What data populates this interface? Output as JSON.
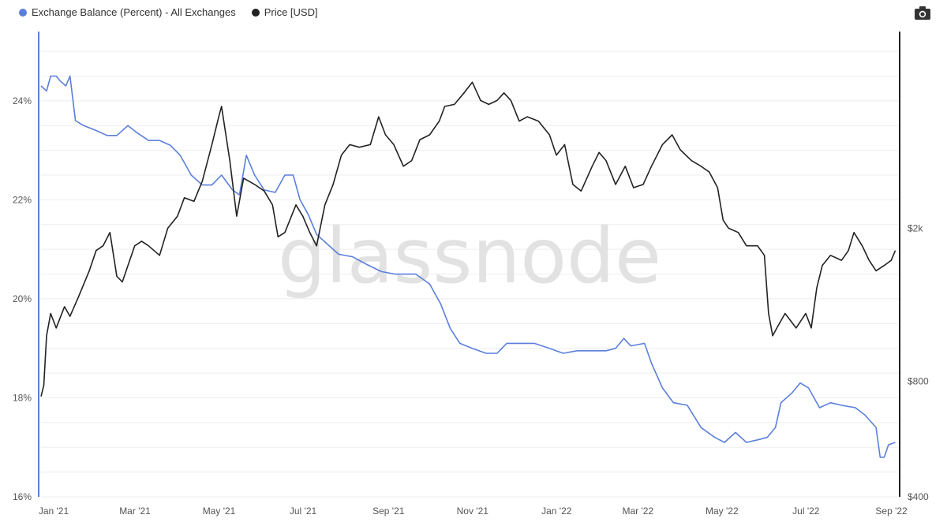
{
  "toolbar": {
    "camera_icon": "camera-icon"
  },
  "chart_data": {
    "type": "line",
    "title": "",
    "watermark": "glassnode",
    "legend_position": "top-left",
    "grid": true,
    "x_range": [
      "2021-01-01",
      "2022-09-15"
    ],
    "x_ticks": [
      "Jan '21",
      "Mar '21",
      "May '21",
      "Jul '21",
      "Sep '21",
      "Nov '21",
      "Jan '22",
      "Mar '22",
      "May '22",
      "Jul '22",
      "Sep '22"
    ],
    "y_left": {
      "label": "",
      "ticks": [
        "16%",
        "18%",
        "20%",
        "22%",
        "24%"
      ],
      "range": [
        16,
        25.4
      ],
      "color": "#5b7fdb"
    },
    "y_right": {
      "label": "",
      "scale": "log",
      "ticks": [
        {
          "value": 400,
          "label": "$400"
        },
        {
          "value": 800,
          "label": "$800"
        },
        {
          "value": 2000,
          "label": "$2k"
        }
      ],
      "range": [
        400,
        6500
      ],
      "color": "#222222"
    },
    "series": [
      {
        "name": "Exchange Balance (Percent) - All Exchanges",
        "axis": "left",
        "color": "#5b7fdb",
        "points": [
          [
            "2021-01-01",
            24.3
          ],
          [
            "2021-01-05",
            24.2
          ],
          [
            "2021-01-08",
            24.5
          ],
          [
            "2021-01-12",
            24.5
          ],
          [
            "2021-01-15",
            24.4
          ],
          [
            "2021-01-19",
            24.3
          ],
          [
            "2021-01-22",
            24.5
          ],
          [
            "2021-01-26",
            23.6
          ],
          [
            "2021-02-01",
            23.5
          ],
          [
            "2021-02-10",
            23.4
          ],
          [
            "2021-02-18",
            23.3
          ],
          [
            "2021-02-25",
            23.3
          ],
          [
            "2021-03-05",
            23.5
          ],
          [
            "2021-03-12",
            23.35
          ],
          [
            "2021-03-20",
            23.2
          ],
          [
            "2021-03-28",
            23.2
          ],
          [
            "2021-04-05",
            23.1
          ],
          [
            "2021-04-12",
            22.9
          ],
          [
            "2021-04-20",
            22.5
          ],
          [
            "2021-04-28",
            22.3
          ],
          [
            "2021-05-05",
            22.3
          ],
          [
            "2021-05-12",
            22.5
          ],
          [
            "2021-05-20",
            22.2
          ],
          [
            "2021-05-25",
            22.1
          ],
          [
            "2021-05-30",
            22.9
          ],
          [
            "2021-06-05",
            22.5
          ],
          [
            "2021-06-12",
            22.2
          ],
          [
            "2021-06-20",
            22.15
          ],
          [
            "2021-06-27",
            22.5
          ],
          [
            "2021-07-03",
            22.5
          ],
          [
            "2021-07-08",
            22.0
          ],
          [
            "2021-07-14",
            21.7
          ],
          [
            "2021-07-20",
            21.3
          ],
          [
            "2021-07-28",
            21.1
          ],
          [
            "2021-08-05",
            20.9
          ],
          [
            "2021-08-15",
            20.85
          ],
          [
            "2021-08-25",
            20.7
          ],
          [
            "2021-09-05",
            20.55
          ],
          [
            "2021-09-15",
            20.5
          ],
          [
            "2021-09-22",
            20.5
          ],
          [
            "2021-09-30",
            20.5
          ],
          [
            "2021-10-10",
            20.3
          ],
          [
            "2021-10-18",
            19.9
          ],
          [
            "2021-10-25",
            19.4
          ],
          [
            "2021-11-01",
            19.1
          ],
          [
            "2021-11-10",
            19.0
          ],
          [
            "2021-11-20",
            18.9
          ],
          [
            "2021-11-28",
            18.9
          ],
          [
            "2021-12-05",
            19.1
          ],
          [
            "2021-12-15",
            19.1
          ],
          [
            "2021-12-25",
            19.1
          ],
          [
            "2022-01-05",
            19.0
          ],
          [
            "2022-01-15",
            18.9
          ],
          [
            "2022-01-25",
            18.95
          ],
          [
            "2022-02-05",
            18.95
          ],
          [
            "2022-02-15",
            18.95
          ],
          [
            "2022-02-22",
            19.0
          ],
          [
            "2022-02-28",
            19.2
          ],
          [
            "2022-03-05",
            19.05
          ],
          [
            "2022-03-15",
            19.1
          ],
          [
            "2022-03-20",
            18.7
          ],
          [
            "2022-03-28",
            18.2
          ],
          [
            "2022-04-05",
            17.9
          ],
          [
            "2022-04-15",
            17.85
          ],
          [
            "2022-04-25",
            17.4
          ],
          [
            "2022-05-05",
            17.2
          ],
          [
            "2022-05-12",
            17.1
          ],
          [
            "2022-05-20",
            17.3
          ],
          [
            "2022-05-28",
            17.1
          ],
          [
            "2022-06-05",
            17.15
          ],
          [
            "2022-06-12",
            17.2
          ],
          [
            "2022-06-18",
            17.4
          ],
          [
            "2022-06-22",
            17.9
          ],
          [
            "2022-06-30",
            18.1
          ],
          [
            "2022-07-06",
            18.3
          ],
          [
            "2022-07-12",
            18.2
          ],
          [
            "2022-07-20",
            17.8
          ],
          [
            "2022-07-28",
            17.9
          ],
          [
            "2022-08-05",
            17.85
          ],
          [
            "2022-08-15",
            17.8
          ],
          [
            "2022-08-22",
            17.65
          ],
          [
            "2022-08-30",
            17.4
          ],
          [
            "2022-09-02",
            16.8
          ],
          [
            "2022-09-05",
            16.8
          ],
          [
            "2022-09-08",
            17.05
          ],
          [
            "2022-09-13",
            17.1
          ]
        ]
      },
      {
        "name": "Price [USD]",
        "axis": "right",
        "color": "#222222",
        "points": [
          [
            "2021-01-01",
            730
          ],
          [
            "2021-01-03",
            780
          ],
          [
            "2021-01-05",
            1050
          ],
          [
            "2021-01-08",
            1200
          ],
          [
            "2021-01-12",
            1100
          ],
          [
            "2021-01-18",
            1250
          ],
          [
            "2021-01-22",
            1180
          ],
          [
            "2021-01-28",
            1320
          ],
          [
            "2021-02-05",
            1550
          ],
          [
            "2021-02-10",
            1750
          ],
          [
            "2021-02-15",
            1800
          ],
          [
            "2021-02-20",
            1950
          ],
          [
            "2021-02-25",
            1500
          ],
          [
            "2021-03-01",
            1450
          ],
          [
            "2021-03-10",
            1800
          ],
          [
            "2021-03-15",
            1850
          ],
          [
            "2021-03-20",
            1800
          ],
          [
            "2021-03-28",
            1700
          ],
          [
            "2021-04-03",
            2000
          ],
          [
            "2021-04-10",
            2150
          ],
          [
            "2021-04-15",
            2400
          ],
          [
            "2021-04-22",
            2350
          ],
          [
            "2021-04-28",
            2650
          ],
          [
            "2021-05-05",
            3300
          ],
          [
            "2021-05-10",
            3900
          ],
          [
            "2021-05-12",
            4150
          ],
          [
            "2021-05-18",
            3000
          ],
          [
            "2021-05-23",
            2150
          ],
          [
            "2021-05-28",
            2700
          ],
          [
            "2021-06-05",
            2600
          ],
          [
            "2021-06-12",
            2500
          ],
          [
            "2021-06-18",
            2300
          ],
          [
            "2021-06-22",
            1900
          ],
          [
            "2021-06-27",
            1950
          ],
          [
            "2021-07-05",
            2300
          ],
          [
            "2021-07-10",
            2150
          ],
          [
            "2021-07-15",
            1950
          ],
          [
            "2021-07-20",
            1800
          ],
          [
            "2021-07-26",
            2300
          ],
          [
            "2021-08-01",
            2600
          ],
          [
            "2021-08-07",
            3100
          ],
          [
            "2021-08-13",
            3300
          ],
          [
            "2021-08-20",
            3250
          ],
          [
            "2021-08-28",
            3300
          ],
          [
            "2021-09-03",
            3900
          ],
          [
            "2021-09-08",
            3500
          ],
          [
            "2021-09-14",
            3300
          ],
          [
            "2021-09-21",
            2900
          ],
          [
            "2021-09-27",
            3000
          ],
          [
            "2021-10-03",
            3400
          ],
          [
            "2021-10-10",
            3500
          ],
          [
            "2021-10-17",
            3800
          ],
          [
            "2021-10-21",
            4150
          ],
          [
            "2021-10-28",
            4200
          ],
          [
            "2021-11-04",
            4500
          ],
          [
            "2021-11-10",
            4800
          ],
          [
            "2021-11-16",
            4300
          ],
          [
            "2021-11-22",
            4200
          ],
          [
            "2021-11-28",
            4300
          ],
          [
            "2021-12-03",
            4500
          ],
          [
            "2021-12-08",
            4300
          ],
          [
            "2021-12-14",
            3800
          ],
          [
            "2021-12-20",
            3900
          ],
          [
            "2021-12-28",
            3800
          ],
          [
            "2022-01-05",
            3500
          ],
          [
            "2022-01-10",
            3100
          ],
          [
            "2022-01-16",
            3300
          ],
          [
            "2022-01-22",
            2600
          ],
          [
            "2022-01-28",
            2500
          ],
          [
            "2022-02-05",
            2900
          ],
          [
            "2022-02-10",
            3150
          ],
          [
            "2022-02-15",
            3000
          ],
          [
            "2022-02-22",
            2600
          ],
          [
            "2022-03-01",
            2900
          ],
          [
            "2022-03-07",
            2550
          ],
          [
            "2022-03-14",
            2600
          ],
          [
            "2022-03-20",
            2900
          ],
          [
            "2022-03-28",
            3300
          ],
          [
            "2022-04-04",
            3500
          ],
          [
            "2022-04-10",
            3200
          ],
          [
            "2022-04-18",
            3000
          ],
          [
            "2022-04-25",
            2900
          ],
          [
            "2022-05-01",
            2800
          ],
          [
            "2022-05-07",
            2550
          ],
          [
            "2022-05-11",
            2100
          ],
          [
            "2022-05-15",
            2000
          ],
          [
            "2022-05-22",
            1950
          ],
          [
            "2022-05-28",
            1800
          ],
          [
            "2022-06-05",
            1800
          ],
          [
            "2022-06-10",
            1700
          ],
          [
            "2022-06-13",
            1200
          ],
          [
            "2022-06-16",
            1050
          ],
          [
            "2022-06-19",
            1100
          ],
          [
            "2022-06-25",
            1200
          ],
          [
            "2022-07-03",
            1100
          ],
          [
            "2022-07-10",
            1200
          ],
          [
            "2022-07-14",
            1100
          ],
          [
            "2022-07-18",
            1400
          ],
          [
            "2022-07-22",
            1600
          ],
          [
            "2022-07-28",
            1700
          ],
          [
            "2022-08-05",
            1650
          ],
          [
            "2022-08-10",
            1750
          ],
          [
            "2022-08-14",
            1950
          ],
          [
            "2022-08-20",
            1800
          ],
          [
            "2022-08-25",
            1650
          ],
          [
            "2022-08-30",
            1550
          ],
          [
            "2022-09-05",
            1600
          ],
          [
            "2022-09-10",
            1650
          ],
          [
            "2022-09-13",
            1750
          ]
        ]
      }
    ]
  }
}
